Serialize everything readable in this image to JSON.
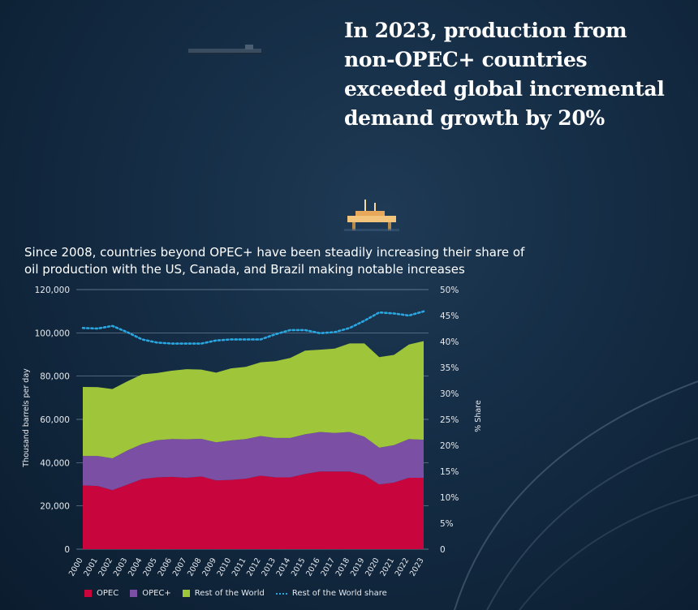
{
  "headline": {
    "lines": [
      "In 2023, production from",
      "non-OPEC+ countries",
      "exceeded global incremental",
      "demand growth by 20%"
    ]
  },
  "subtitle": {
    "lines": [
      "Since 2008, countries beyond OPEC+ have been steadily increasing their share of",
      "oil production with the US, Canada, and Brazil making notable increases"
    ]
  },
  "colors": {
    "opec": "#c8063d",
    "opec_plus": "#7b4fa3",
    "rest": "#9fc63b",
    "share": "#2aa6e0",
    "grid": "#8fa2b5",
    "text": "#e6e9ee"
  },
  "icons": {
    "ship": "tanker-ship-icon",
    "platform": "oil-platform-icon"
  },
  "chart_data": {
    "type": "area",
    "x": [
      "2000",
      "2001",
      "2002",
      "2003",
      "2004",
      "2005",
      "2006",
      "2007",
      "2008",
      "2009",
      "2010",
      "2011",
      "2012",
      "2013",
      "2014",
      "2015",
      "2016",
      "2017",
      "2018",
      "2019",
      "2020",
      "2021",
      "2022",
      "2023"
    ],
    "series": [
      {
        "name": "OPEC",
        "stack": "primary",
        "values": [
          29500,
          29200,
          27300,
          29800,
          32400,
          33200,
          33400,
          33000,
          33600,
          31800,
          32000,
          32600,
          34000,
          33200,
          33200,
          34800,
          35900,
          35900,
          35900,
          34200,
          29900,
          30800,
          33000,
          33000
        ]
      },
      {
        "name": "OPEC+",
        "stack": "primary",
        "values": [
          13600,
          13900,
          14700,
          15800,
          16200,
          17200,
          17500,
          17800,
          17400,
          17600,
          18300,
          18300,
          18300,
          18200,
          18200,
          18300,
          18300,
          17800,
          18300,
          17800,
          17000,
          17300,
          17900,
          17600
        ]
      },
      {
        "name": "Rest of the World",
        "stack": "primary",
        "values": [
          31900,
          31800,
          32000,
          32000,
          32200,
          31000,
          31600,
          32400,
          32000,
          32200,
          33300,
          33400,
          34100,
          35500,
          37000,
          38700,
          38000,
          39000,
          40900,
          43100,
          41900,
          41700,
          43700,
          45600
        ]
      },
      {
        "name": "Rest of the World share",
        "axis": "secondary",
        "values": [
          42.6,
          42.5,
          43.0,
          41.8,
          40.4,
          39.8,
          39.6,
          39.6,
          39.6,
          40.2,
          40.4,
          40.4,
          40.4,
          41.4,
          42.2,
          42.2,
          41.6,
          41.8,
          42.6,
          44.0,
          45.6,
          45.4,
          45.0,
          45.8
        ]
      }
    ],
    "yticks": [
      "0",
      "20,000",
      "40,000",
      "60,000",
      "80,000",
      "100,000",
      "120,000"
    ],
    "ylim": [
      0,
      120000
    ],
    "y2ticks": [
      "0",
      "5%",
      "10%",
      "15%",
      "20%",
      "25%",
      "30%",
      "35%",
      "40%",
      "45%",
      "50%"
    ],
    "y2lim": [
      0,
      50
    ],
    "ylabel": "Thousand barrels per day",
    "y2label": "% Share",
    "legend": [
      {
        "label": "OPEC",
        "kind": "box",
        "color": "#c8063d"
      },
      {
        "label": "OPEC+",
        "kind": "box",
        "color": "#7b4fa3"
      },
      {
        "label": "Rest of the World",
        "kind": "box",
        "color": "#9fc63b"
      },
      {
        "label": "Rest of the World share",
        "kind": "dotted",
        "color": "#2aa6e0"
      }
    ]
  }
}
